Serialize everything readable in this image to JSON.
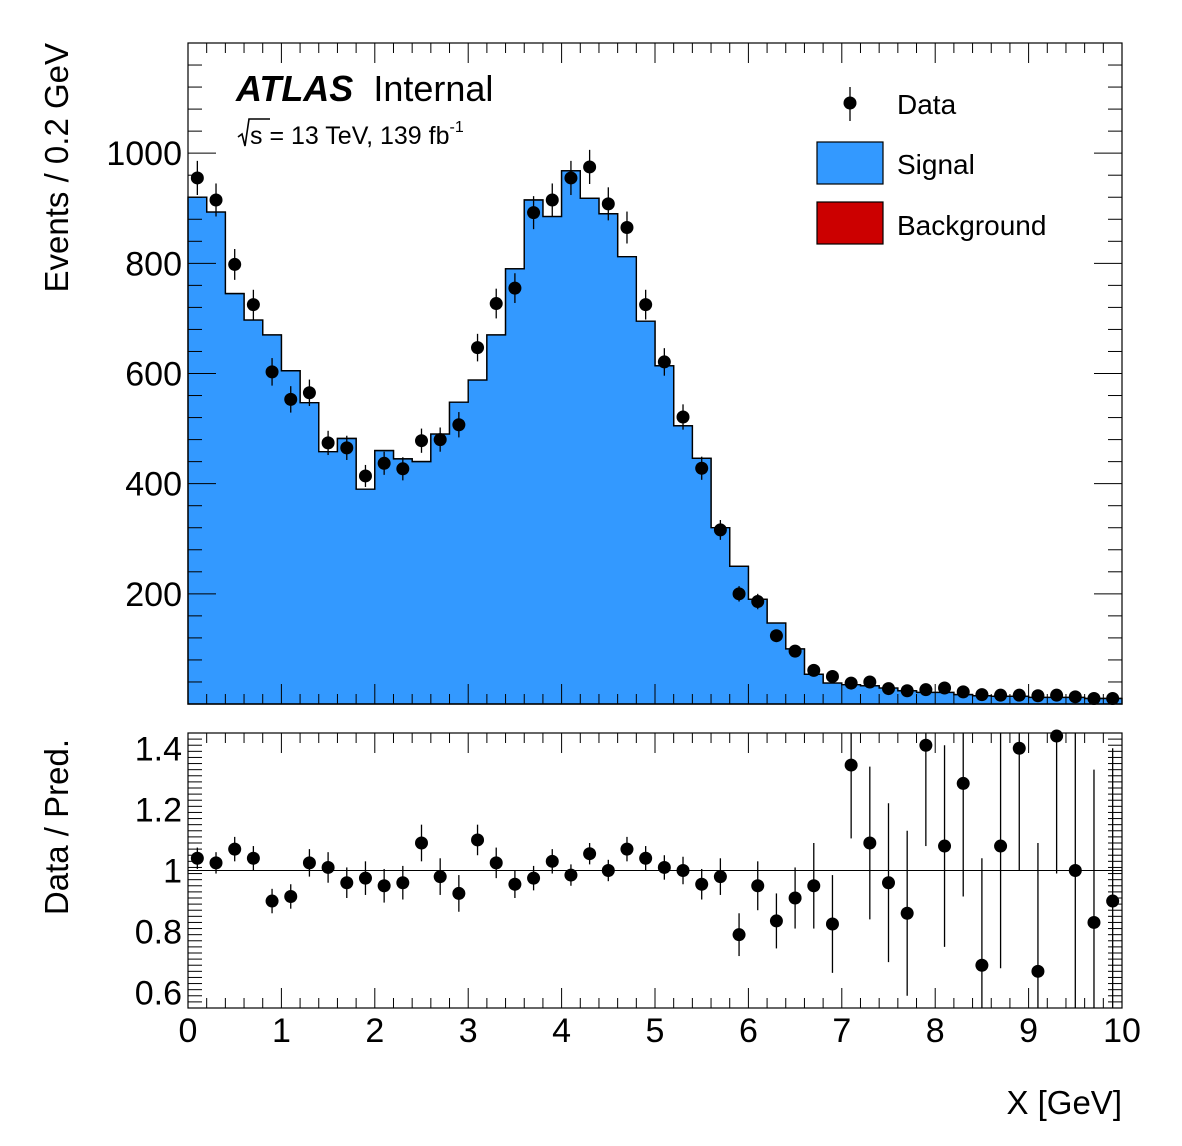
{
  "header": {
    "experiment": "ATLAS",
    "status": "Internal",
    "sqrt_s": "s",
    "energy_text": " = 13 TeV, 139 fb",
    "lumi_exponent": "-1"
  },
  "colors": {
    "signal": "#3399ff",
    "background": "#cc0000",
    "data": "#000000"
  },
  "chart_data": [
    {
      "type": "histogram",
      "panel": "main",
      "ylabel": "Events / 0.2 GeV",
      "xlim": [
        0,
        10
      ],
      "ylim": [
        0,
        1200
      ],
      "yticks": [
        200,
        400,
        600,
        800,
        1000
      ],
      "legend": {
        "placement": "top-right",
        "entries": [
          {
            "label": "Data",
            "kind": "marker"
          },
          {
            "label": "Signal",
            "kind": "fill"
          },
          {
            "label": "Background",
            "kind": "fill"
          }
        ]
      },
      "bin_width": 0.2,
      "bin_centers": [
        0.1,
        0.3,
        0.5,
        0.7,
        0.9,
        1.1,
        1.3,
        1.5,
        1.7,
        1.9,
        2.1,
        2.3,
        2.5,
        2.7,
        2.9,
        3.1,
        3.3,
        3.5,
        3.7,
        3.9,
        4.1,
        4.3,
        4.5,
        4.7,
        4.9,
        5.1,
        5.3,
        5.5,
        5.7,
        5.9,
        6.1,
        6.3,
        6.5,
        6.7,
        6.9,
        7.1,
        7.3,
        7.5,
        7.7,
        7.9,
        8.1,
        8.3,
        8.5,
        8.7,
        8.9,
        9.1,
        9.3,
        9.5,
        9.7,
        9.9
      ],
      "series": [
        {
          "name": "Background",
          "values": [
            920,
            893,
            745,
            697,
            670,
            605,
            547,
            458,
            470,
            390,
            388,
            383,
            322,
            260,
            255,
            240,
            185,
            190,
            170,
            160,
            143,
            138,
            105,
            108,
            85,
            95,
            65,
            92,
            70,
            55,
            50,
            48,
            50,
            28,
            25,
            25,
            22,
            22,
            20,
            18,
            18,
            18,
            15,
            14,
            14,
            12,
            12,
            12,
            10,
            10
          ]
        },
        {
          "name": "Signal + Background",
          "values": [
            920,
            893,
            745,
            697,
            670,
            605,
            547,
            458,
            482,
            390,
            460,
            445,
            440,
            490,
            548,
            588,
            670,
            790,
            915,
            885,
            968,
            918,
            890,
            812,
            695,
            614,
            505,
            446,
            320,
            250,
            190,
            147,
            100,
            54,
            38,
            35,
            33,
            29,
            24,
            21,
            21,
            17,
            15,
            14,
            14,
            12,
            12,
            12,
            10,
            10
          ]
        },
        {
          "name": "Data",
          "values": [
            955,
            915,
            798,
            725,
            603,
            553,
            565,
            474,
            465,
            414,
            437,
            427,
            478,
            480,
            507,
            647,
            727,
            755,
            892,
            915,
            955,
            975,
            908,
            865,
            725,
            621,
            521,
            428,
            316,
            200,
            186,
            124,
            96,
            61,
            50,
            38,
            40,
            28,
            24,
            26,
            29,
            22,
            17,
            16,
            16,
            15,
            16,
            13,
            10,
            10
          ],
          "errors": [
            31,
            30,
            28,
            27,
            25,
            24,
            24,
            22,
            22,
            20,
            21,
            21,
            22,
            22,
            23,
            25,
            27,
            27,
            30,
            30,
            31,
            31,
            30,
            29,
            27,
            25,
            23,
            21,
            18,
            14,
            14,
            11,
            10,
            8,
            7,
            6,
            6,
            5,
            5,
            5,
            5,
            5,
            4,
            4,
            4,
            4,
            4,
            4,
            3,
            3
          ]
        }
      ]
    },
    {
      "type": "scatter",
      "panel": "ratio",
      "xlabel": "X [GeV]",
      "ylabel": "Data / Pred.",
      "xlim": [
        0,
        10
      ],
      "ylim": [
        0.55,
        1.45
      ],
      "yticks": [
        0.6,
        0.8,
        1,
        1.2,
        1.4
      ],
      "xticks": [
        0,
        1,
        2,
        3,
        4,
        5,
        6,
        7,
        8,
        9,
        10
      ],
      "reference_line": 1,
      "x": [
        0.1,
        0.3,
        0.5,
        0.7,
        0.9,
        1.1,
        1.3,
        1.5,
        1.7,
        1.9,
        2.1,
        2.3,
        2.5,
        2.7,
        2.9,
        3.1,
        3.3,
        3.5,
        3.7,
        3.9,
        4.1,
        4.3,
        4.5,
        4.7,
        4.9,
        5.1,
        5.3,
        5.5,
        5.7,
        5.9,
        6.1,
        6.3,
        6.5,
        6.7,
        6.9,
        7.1,
        7.3,
        7.5,
        7.7,
        7.9,
        8.1,
        8.3,
        8.5,
        8.7,
        8.9,
        9.1,
        9.3,
        9.5,
        9.7,
        9.9
      ],
      "y": [
        1.04,
        1.025,
        1.07,
        1.04,
        0.9,
        0.915,
        1.025,
        1.01,
        0.96,
        0.975,
        0.95,
        0.96,
        1.09,
        0.98,
        0.925,
        1.1,
        1.025,
        0.955,
        0.975,
        1.03,
        0.985,
        1.055,
        1.0,
        1.07,
        1.04,
        1.01,
        1.0,
        0.955,
        0.98,
        0.79,
        0.95,
        0.835,
        0.91,
        0.95,
        0.825,
        1.345,
        1.09,
        0.96,
        0.86,
        1.41,
        1.08,
        1.285,
        0.69,
        1.08,
        1.4,
        0.67,
        1.44,
        1.0,
        0.83,
        0.9
      ],
      "y_errors": [
        0.035,
        0.035,
        0.04,
        0.04,
        0.04,
        0.04,
        0.045,
        0.05,
        0.05,
        0.055,
        0.055,
        0.055,
        0.06,
        0.06,
        0.06,
        0.05,
        0.05,
        0.045,
        0.04,
        0.04,
        0.035,
        0.035,
        0.035,
        0.04,
        0.04,
        0.04,
        0.045,
        0.05,
        0.06,
        0.07,
        0.08,
        0.09,
        0.1,
        0.14,
        0.16,
        0.24,
        0.25,
        0.26,
        0.27,
        0.33,
        0.33,
        0.37,
        0.35,
        0.4,
        0.4,
        0.42,
        0.45,
        0.45,
        0.5,
        0.5
      ]
    }
  ]
}
